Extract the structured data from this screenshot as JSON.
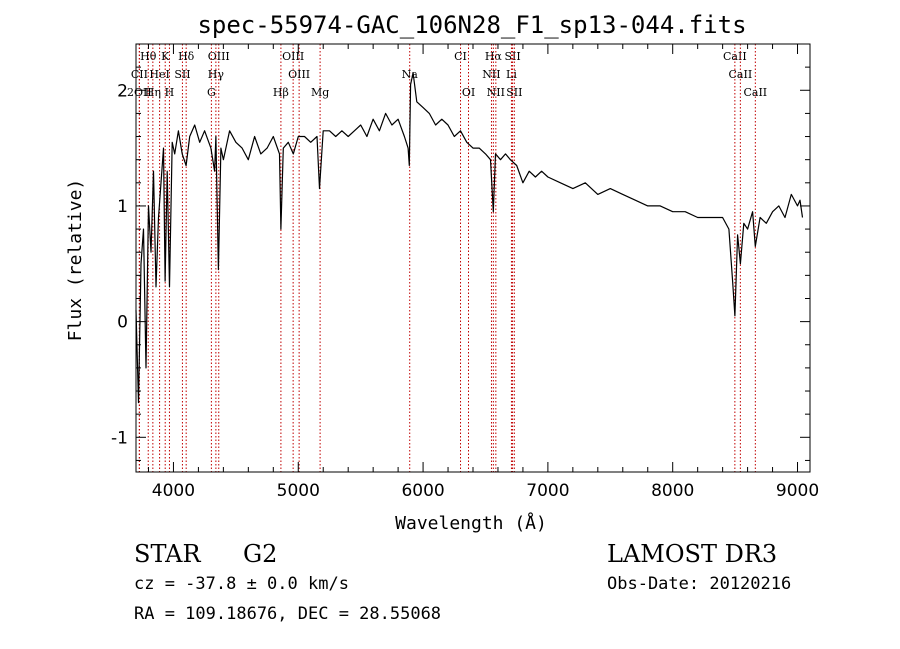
{
  "chart_data": {
    "type": "line",
    "title": "spec-55974-GAC_106N28_F1_sp13-044.fits",
    "xlabel": "Wavelength (Å)",
    "ylabel": "Flux (relative)",
    "xlim": [
      3700,
      9100
    ],
    "ylim": [
      -1.3,
      2.4
    ],
    "xticks": [
      4000,
      5000,
      6000,
      7000,
      8000,
      9000
    ],
    "yticks": [
      -1,
      0,
      1,
      2
    ],
    "series": [
      {
        "name": "flux",
        "color": "#000000",
        "x": [
          3700,
          3720,
          3740,
          3760,
          3780,
          3800,
          3820,
          3840,
          3860,
          3880,
          3900,
          3920,
          3933,
          3950,
          3968,
          3990,
          4010,
          4040,
          4070,
          4101,
          4130,
          4170,
          4210,
          4250,
          4300,
          4330,
          4340,
          4360,
          4380,
          4400,
          4450,
          4500,
          4550,
          4600,
          4650,
          4700,
          4750,
          4800,
          4850,
          4861,
          4880,
          4920,
          4960,
          5000,
          5050,
          5100,
          5150,
          5170,
          5200,
          5250,
          5300,
          5350,
          5400,
          5450,
          5500,
          5550,
          5600,
          5650,
          5700,
          5750,
          5800,
          5850,
          5880,
          5890,
          5900,
          5920,
          5950,
          6000,
          6050,
          6100,
          6150,
          6200,
          6250,
          6300,
          6350,
          6400,
          6450,
          6500,
          6540,
          6563,
          6580,
          6620,
          6660,
          6700,
          6750,
          6800,
          6850,
          6900,
          6950,
          7000,
          7100,
          7200,
          7300,
          7400,
          7500,
          7600,
          7700,
          7800,
          7900,
          8000,
          8100,
          8200,
          8300,
          8400,
          8450,
          8480,
          8498,
          8520,
          8542,
          8570,
          8600,
          8640,
          8662,
          8700,
          8750,
          8800,
          8850,
          8900,
          8950,
          9000,
          9020,
          9040
        ],
        "values": [
          0.1,
          -0.7,
          0.5,
          0.8,
          -0.4,
          1.0,
          0.6,
          1.3,
          0.3,
          0.9,
          1.2,
          1.5,
          0.35,
          1.3,
          0.3,
          1.55,
          1.45,
          1.65,
          1.45,
          1.35,
          1.6,
          1.7,
          1.55,
          1.65,
          1.5,
          1.3,
          1.6,
          0.45,
          1.5,
          1.4,
          1.65,
          1.55,
          1.5,
          1.4,
          1.6,
          1.45,
          1.5,
          1.6,
          1.45,
          0.8,
          1.5,
          1.55,
          1.45,
          1.6,
          1.6,
          1.55,
          1.6,
          1.15,
          1.65,
          1.65,
          1.6,
          1.65,
          1.6,
          1.65,
          1.7,
          1.6,
          1.75,
          1.65,
          1.8,
          1.7,
          1.75,
          1.6,
          1.5,
          1.35,
          2.05,
          2.15,
          1.9,
          1.85,
          1.8,
          1.7,
          1.75,
          1.7,
          1.6,
          1.65,
          1.55,
          1.5,
          1.5,
          1.45,
          1.4,
          0.95,
          1.45,
          1.4,
          1.45,
          1.4,
          1.35,
          1.2,
          1.3,
          1.25,
          1.3,
          1.25,
          1.2,
          1.15,
          1.2,
          1.1,
          1.15,
          1.1,
          1.05,
          1.0,
          1.0,
          0.95,
          0.95,
          0.9,
          0.9,
          0.9,
          0.8,
          0.35,
          0.05,
          0.75,
          0.5,
          0.85,
          0.8,
          0.95,
          0.65,
          0.9,
          0.85,
          0.95,
          1.0,
          0.9,
          1.1,
          1.0,
          1.05,
          0.9
        ]
      }
    ],
    "lines": [
      {
        "label": "Hθ",
        "wave": 3798,
        "row": 0
      },
      {
        "label": "K",
        "wave": 3934,
        "row": 0
      },
      {
        "label": "Hδ",
        "wave": 4102,
        "row": 0
      },
      {
        "label": "OIII",
        "wave": 4363,
        "row": 0
      },
      {
        "label": "OIII",
        "wave": 4959,
        "row": 0
      },
      {
        "label": "CI",
        "wave": 6300,
        "row": 0
      },
      {
        "label": "Hα",
        "wave": 6563,
        "row": 0
      },
      {
        "label": "SII",
        "wave": 6717,
        "row": 0
      },
      {
        "label": "CaII",
        "wave": 8498,
        "row": 0
      },
      {
        "label": "CII",
        "wave": 3727,
        "row": 1
      },
      {
        "label": "HeI",
        "wave": 3889,
        "row": 1
      },
      {
        "label": "SII",
        "wave": 4072,
        "row": 1
      },
      {
        "label": "Hγ",
        "wave": 4340,
        "row": 1
      },
      {
        "label": "OIII",
        "wave": 5007,
        "row": 1
      },
      {
        "label": "Na",
        "wave": 5893,
        "row": 1
      },
      {
        "label": "NII",
        "wave": 6548,
        "row": 1
      },
      {
        "label": "Li",
        "wave": 6708,
        "row": 1
      },
      {
        "label": "CaII",
        "wave": 8542,
        "row": 1
      },
      {
        "label": "2OII",
        "wave": 3727,
        "row": 2
      },
      {
        "label": "Hη",
        "wave": 3835,
        "row": 2
      },
      {
        "label": "H",
        "wave": 3968,
        "row": 2
      },
      {
        "label": "G",
        "wave": 4304,
        "row": 2
      },
      {
        "label": "Hβ",
        "wave": 4861,
        "row": 2
      },
      {
        "label": "Mg",
        "wave": 5175,
        "row": 2
      },
      {
        "label": "OI",
        "wave": 6364,
        "row": 2
      },
      {
        "label": "NII",
        "wave": 6583,
        "row": 2
      },
      {
        "label": "SII",
        "wave": 6731,
        "row": 2
      },
      {
        "label": "CaII",
        "wave": 8662,
        "row": 2
      }
    ]
  },
  "info": {
    "object_class": "STAR",
    "subclass": "G2",
    "survey": "LAMOST DR3",
    "redshift": "cz = -37.8 ± 0.0 km/s",
    "obs_date": "Obs-Date: 20120216",
    "coords": "RA = 109.18676, DEC =  28.55068"
  },
  "colors": {
    "line_marker": "#c00000",
    "spectrum": "#000000"
  }
}
